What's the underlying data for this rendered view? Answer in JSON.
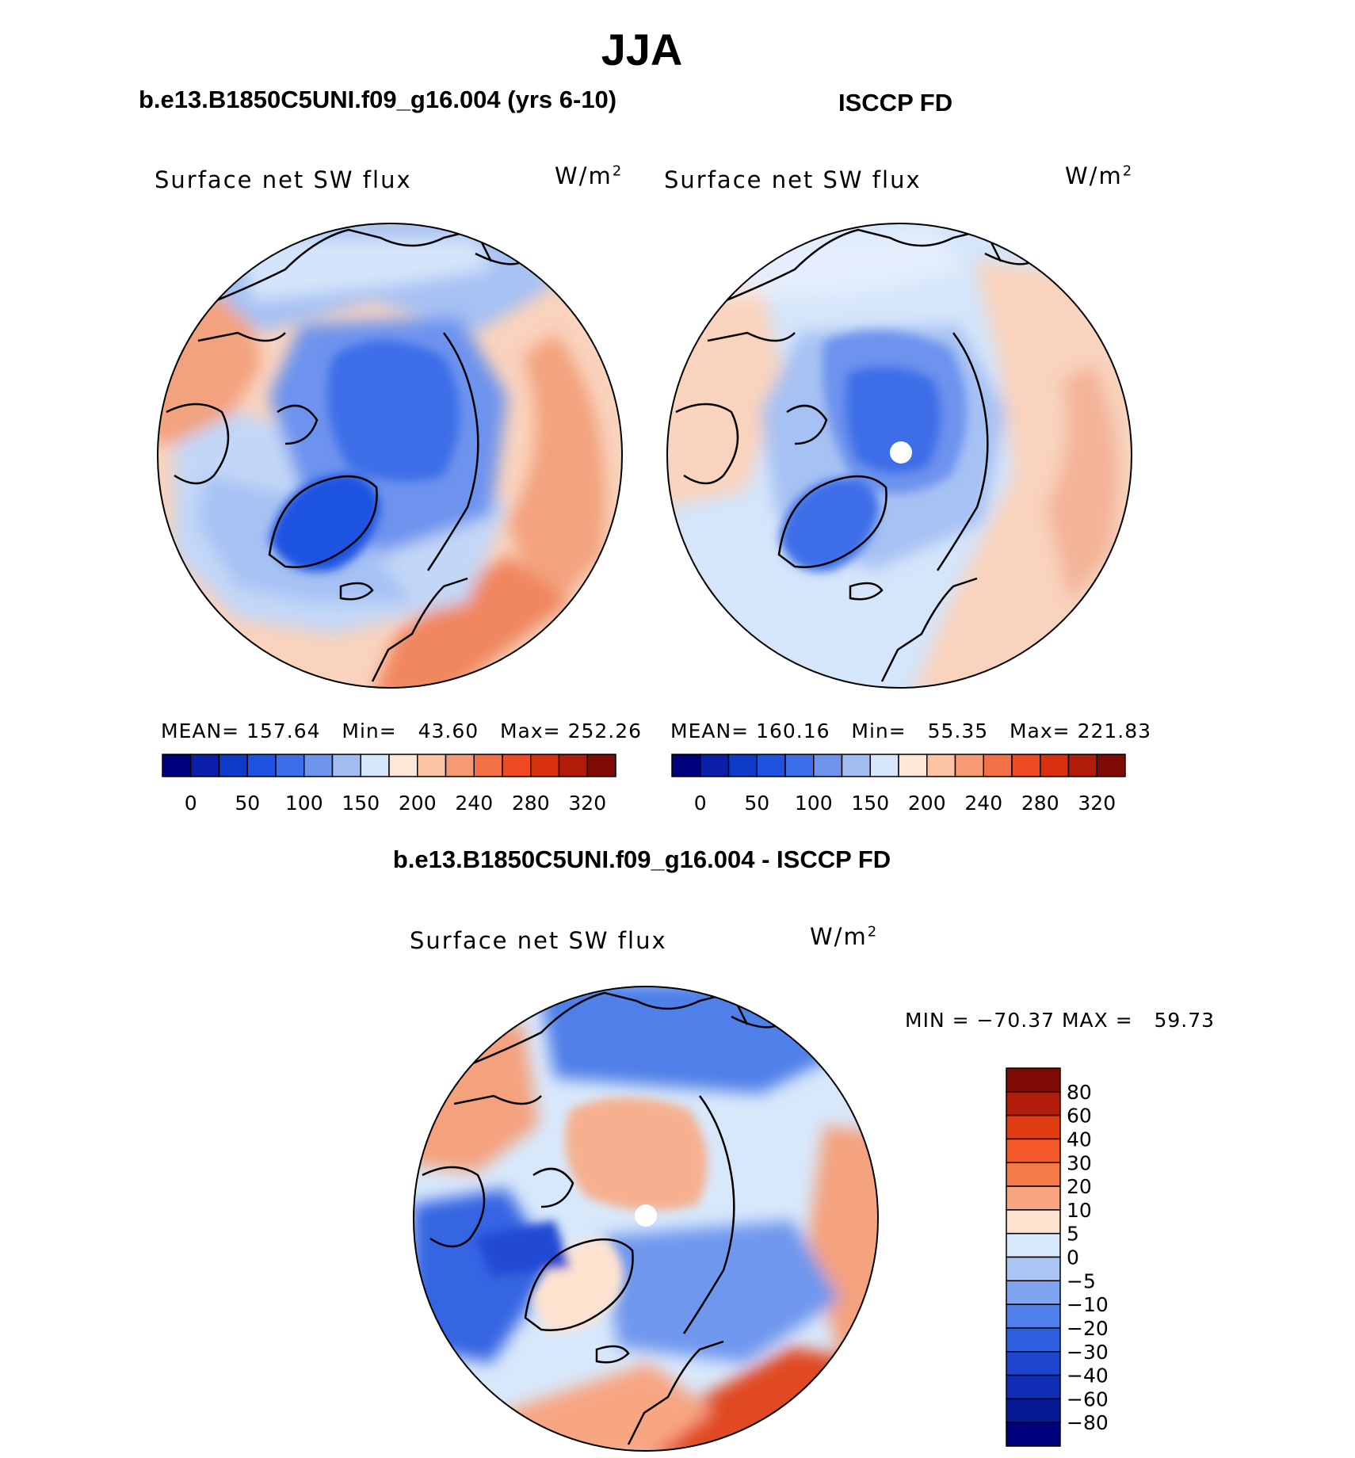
{
  "figure": {
    "title": "JJA",
    "panels": [
      {
        "case_title": "b.e13.B1850C5UNI.f09_g16.004 (yrs 6-10)",
        "variable": "Surface net SW flux",
        "units": "W/m",
        "units_exponent": "2",
        "stats": {
          "mean_label": "MEAN=",
          "mean": "157.64",
          "min_label": "Min=",
          "min": "43.60",
          "max_label": "Max=",
          "max": "252.26"
        }
      },
      {
        "case_title": "ISCCP FD",
        "variable": "Surface net SW flux",
        "units": "W/m",
        "units_exponent": "2",
        "stats": {
          "mean_label": "MEAN=",
          "mean": "160.16",
          "min_label": "Min=",
          "min": "55.35",
          "max_label": "Max=",
          "max": "221.83"
        }
      }
    ],
    "difference": {
      "title": "b.e13.B1850C5UNI.f09_g16.004 - ISCCP FD",
      "variable": "Surface net SW flux",
      "units": "W/m",
      "units_exponent": "2",
      "minmax": "MIN = −70.37 MAX =   59.73"
    }
  },
  "chart_data": [
    {
      "type": "heatmap",
      "projection": "north-polar-stereographic",
      "title": "b.e13.B1850C5UNI.f09_g16.004 (yrs 6-10)",
      "subtitle": "Surface net SW flux",
      "units": "W/m2",
      "mean": 157.64,
      "min": 43.6,
      "max": 252.26,
      "colorbar": {
        "orientation": "horizontal",
        "tick_labels": [
          "0",
          "50",
          "100",
          "150",
          "200",
          "240",
          "280",
          "320"
        ],
        "colors": [
          "#00007d",
          "#0a1ea8",
          "#0e3ac8",
          "#1f52e0",
          "#3c6ee8",
          "#6e94ee",
          "#a3bdf3",
          "#d6e6fa",
          "#fde7d6",
          "#fbc3a3",
          "#f69a73",
          "#f27045",
          "#ef4a22",
          "#d9300f",
          "#b21d0b",
          "#7e0a04"
        ]
      }
    },
    {
      "type": "heatmap",
      "projection": "north-polar-stereographic",
      "title": "ISCCP FD",
      "subtitle": "Surface net SW flux",
      "units": "W/m2",
      "mean": 160.16,
      "min": 55.35,
      "max": 221.83,
      "colorbar": {
        "orientation": "horizontal",
        "tick_labels": [
          "0",
          "50",
          "100",
          "150",
          "200",
          "240",
          "280",
          "320"
        ],
        "colors": [
          "#00007d",
          "#0a1ea8",
          "#0e3ac8",
          "#1f52e0",
          "#3c6ee8",
          "#6e94ee",
          "#a3bdf3",
          "#d6e6fa",
          "#fde7d6",
          "#fbc3a3",
          "#f69a73",
          "#f27045",
          "#ef4a22",
          "#d9300f",
          "#b21d0b",
          "#7e0a04"
        ]
      }
    },
    {
      "type": "heatmap",
      "projection": "north-polar-stereographic",
      "title": "b.e13.B1850C5UNI.f09_g16.004 - ISCCP FD",
      "subtitle": "Surface net SW flux",
      "units": "W/m2",
      "min": -70.37,
      "max": 59.73,
      "colorbar": {
        "orientation": "vertical",
        "tick_labels": [
          "80",
          "60",
          "40",
          "30",
          "20",
          "10",
          "5",
          "0",
          "−5",
          "−10",
          "−20",
          "−30",
          "−40",
          "−60",
          "−80"
        ],
        "colors": [
          "#7e0a04",
          "#b21d0b",
          "#e03c14",
          "#f5582a",
          "#f47a48",
          "#f8a582",
          "#fde2d0",
          "#d8e8fb",
          "#aac5f4",
          "#7fa5ef",
          "#4f7fe8",
          "#2e5fe0",
          "#1d45d0",
          "#0f2db4",
          "#061a94",
          "#00007d"
        ]
      }
    }
  ]
}
